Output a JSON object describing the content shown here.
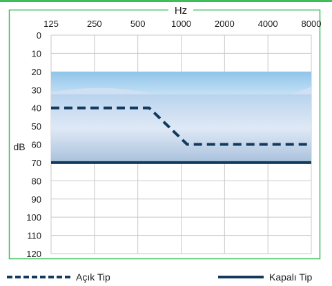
{
  "chart_data": {
    "type": "line",
    "xlabel": "Hz",
    "ylabel": "dB",
    "x_ticks": [
      "125",
      "250",
      "500",
      "1000",
      "2000",
      "4000",
      "8000"
    ],
    "y_ticks": [
      "0",
      "10",
      "20",
      "30",
      "40",
      "50",
      "60",
      "70",
      "80",
      "90",
      "100",
      "110",
      "120"
    ],
    "xlim": [
      125,
      8000
    ],
    "ylim": [
      0,
      120
    ],
    "y_inverted": true,
    "x_scale": "log",
    "grid": true,
    "legend_position": "bottom",
    "shaded_band": {
      "y_from": 20,
      "y_to": 70,
      "fill": "photo of blue flower field"
    },
    "series": [
      {
        "name": "Açık Tip",
        "style": "dashed",
        "color": "#123a5e",
        "x": [
          125,
          600,
          1100,
          8000
        ],
        "y": [
          40,
          40,
          60,
          60
        ]
      },
      {
        "name": "Kapalı Tip",
        "style": "solid",
        "color": "#123a5e",
        "x": [
          125,
          8000
        ],
        "y": [
          70,
          70
        ]
      }
    ]
  },
  "colors": {
    "frame_green": "#3dbe5a",
    "grid": "#c8c8c8",
    "line": "#123a5e"
  }
}
